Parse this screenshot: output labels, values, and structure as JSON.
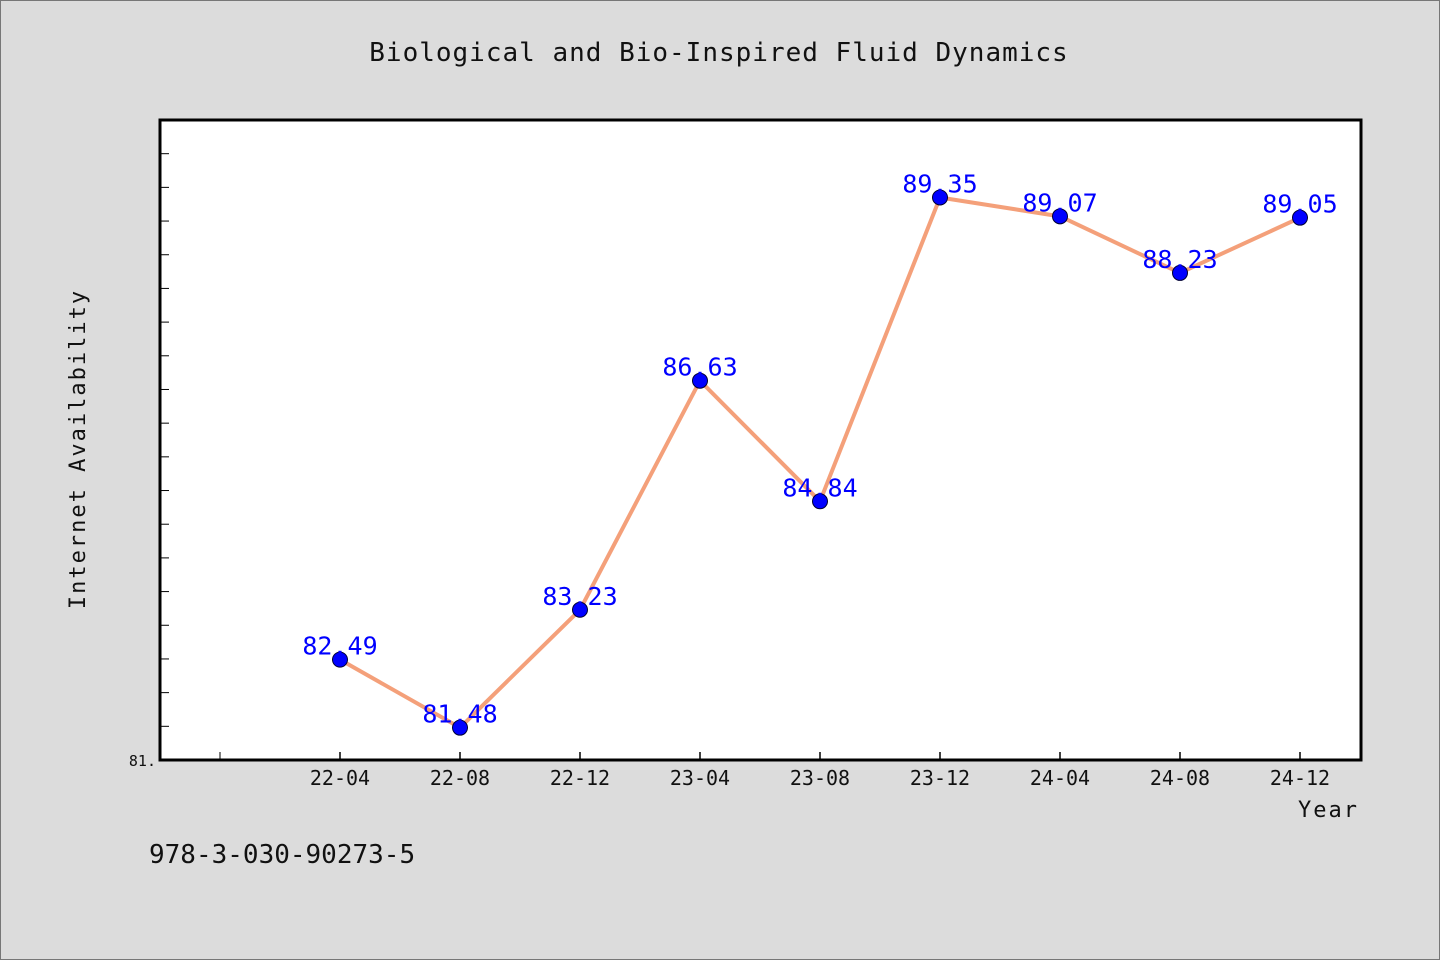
{
  "colors": {
    "background": "#dcdcdc",
    "plot_background": "#ffffff",
    "line": "#f4a07a",
    "marker": "#0000ff",
    "data_label": "#0000ff",
    "axis": "#000000"
  },
  "footnote": "978-3-030-90273-5",
  "chart_data": {
    "type": "line",
    "title": "Biological and Bio-Inspired Fluid Dynamics",
    "xlabel": "Year",
    "ylabel": "Internet Availability",
    "categories": [
      "22-04",
      "22-08",
      "22-12",
      "23-04",
      "23-08",
      "23-12",
      "24-04",
      "24-08",
      "24-12"
    ],
    "series": [
      {
        "values": [
          82.49,
          81.48,
          83.23,
          86.63,
          84.84,
          89.35,
          89.07,
          88.23,
          89.05
        ],
        "labels": [
          "82.49",
          "81.48",
          "83.23",
          "86.63",
          "84.84",
          "89.35",
          "89.07",
          "88.23",
          "89.05"
        ],
        "color": "#f4a07a",
        "marker_color": "#0000ff"
      }
    ],
    "ylim": [
      81.0,
      90.5
    ],
    "y_tick_labels": [
      "81."
    ],
    "grid": false,
    "legend": "none"
  }
}
